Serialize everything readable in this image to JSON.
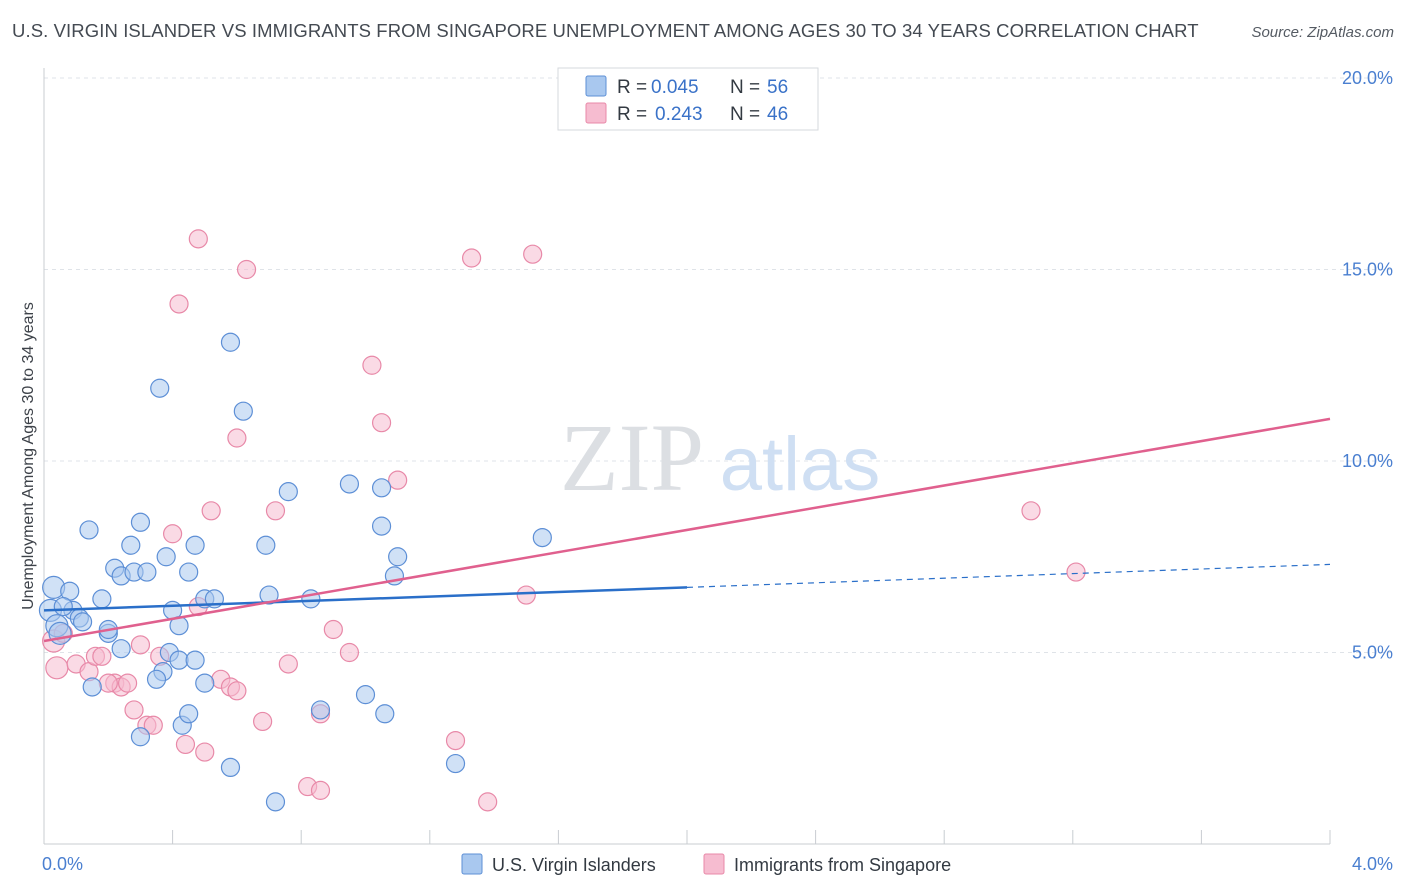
{
  "header": {
    "title": "U.S. VIRGIN ISLANDER VS IMMIGRANTS FROM SINGAPORE UNEMPLOYMENT AMONG AGES 30 TO 34 YEARS CORRELATION CHART",
    "source": "Source: ZipAtlas.com"
  },
  "watermark": {
    "zip": "ZIP",
    "atlas": "atlas"
  },
  "colors": {
    "blue_fill": "#a9c8ef",
    "blue_stroke": "#5d8fd6",
    "blue_line": "#2a6fc9",
    "pink_fill": "#f6bcd0",
    "pink_stroke": "#e889a8",
    "pink_line": "#e0608e",
    "tick_text": "#4a7fd0",
    "grid": "#dfe3e8"
  },
  "legend": {
    "rows": [
      {
        "r_label": "R =",
        "r_value": "0.045",
        "n_label": "N =",
        "n_value": "56"
      },
      {
        "r_label": "R =",
        "r_value": "0.243",
        "n_label": "N =",
        "n_value": "46"
      }
    ]
  },
  "bottom_legend": [
    "U.S. Virgin Islanders",
    "Immigrants from Singapore"
  ],
  "chart_data": {
    "type": "scatter",
    "title": "U.S. VIRGIN ISLANDER VS IMMIGRANTS FROM SINGAPORE UNEMPLOYMENT AMONG AGES 30 TO 34 YEARS CORRELATION CHART",
    "xlabel": "",
    "ylabel": "Unemployment Among Ages 30 to 34 years",
    "xlim": [
      0,
      4.0
    ],
    "ylim": [
      0,
      20.0
    ],
    "x_tick_labels": [
      "0.0%",
      "4.0%"
    ],
    "y_ticks": [
      5,
      10,
      15,
      20
    ],
    "y_tick_labels": [
      "5.0%",
      "10.0%",
      "15.0%",
      "20.0%"
    ],
    "grid": true,
    "legend_position": "top-center",
    "series": [
      {
        "name": "U.S. Virgin Islanders",
        "r": 0.045,
        "n": 56,
        "trend": {
          "x0": 0.0,
          "y0": 6.1,
          "x1": 2.0,
          "y1": 6.7,
          "dashed_to_x": 4.0,
          "dashed_to_y": 7.3
        },
        "points": [
          [
            0.03,
            6.7
          ],
          [
            0.02,
            6.1
          ],
          [
            0.04,
            5.7
          ],
          [
            0.08,
            6.6
          ],
          [
            0.09,
            6.1
          ],
          [
            0.11,
            5.9
          ],
          [
            0.05,
            5.5
          ],
          [
            0.14,
            8.2
          ],
          [
            0.18,
            6.4
          ],
          [
            0.2,
            5.5
          ],
          [
            0.22,
            7.2
          ],
          [
            0.24,
            7.0
          ],
          [
            0.27,
            7.8
          ],
          [
            0.28,
            7.1
          ],
          [
            0.3,
            8.4
          ],
          [
            0.32,
            7.1
          ],
          [
            0.38,
            7.5
          ],
          [
            0.36,
            11.9
          ],
          [
            0.4,
            6.1
          ],
          [
            0.42,
            5.7
          ],
          [
            0.45,
            7.1
          ],
          [
            0.47,
            7.8
          ],
          [
            0.5,
            6.4
          ],
          [
            0.53,
            6.4
          ],
          [
            0.58,
            13.1
          ],
          [
            0.62,
            11.3
          ],
          [
            0.69,
            7.8
          ],
          [
            0.7,
            6.5
          ],
          [
            0.76,
            9.2
          ],
          [
            0.83,
            6.4
          ],
          [
            0.95,
            9.4
          ],
          [
            1.05,
            9.3
          ],
          [
            1.05,
            8.3
          ],
          [
            1.1,
            7.5
          ],
          [
            1.09,
            7.0
          ],
          [
            1.55,
            8.0
          ],
          [
            0.24,
            5.1
          ],
          [
            0.37,
            4.5
          ],
          [
            0.39,
            5.0
          ],
          [
            0.42,
            4.8
          ],
          [
            0.47,
            4.8
          ],
          [
            0.5,
            4.2
          ],
          [
            0.15,
            4.1
          ],
          [
            0.2,
            5.6
          ],
          [
            0.35,
            4.3
          ],
          [
            0.3,
            2.8
          ],
          [
            0.43,
            3.1
          ],
          [
            0.45,
            3.4
          ],
          [
            0.58,
            2.0
          ],
          [
            0.72,
            1.1
          ],
          [
            0.86,
            3.5
          ],
          [
            1.0,
            3.9
          ],
          [
            1.06,
            3.4
          ],
          [
            1.28,
            2.1
          ],
          [
            0.06,
            6.2
          ],
          [
            0.12,
            5.8
          ]
        ]
      },
      {
        "name": "Immigrants from Singapore",
        "r": 0.243,
        "n": 46,
        "trend": {
          "x0": 0.0,
          "y0": 5.3,
          "x1": 4.0,
          "y1": 11.1
        },
        "points": [
          [
            0.03,
            5.3
          ],
          [
            0.06,
            5.5
          ],
          [
            0.04,
            4.6
          ],
          [
            0.1,
            4.7
          ],
          [
            0.14,
            4.5
          ],
          [
            0.16,
            4.9
          ],
          [
            0.18,
            4.9
          ],
          [
            0.22,
            4.2
          ],
          [
            0.24,
            4.1
          ],
          [
            0.26,
            4.2
          ],
          [
            0.28,
            3.5
          ],
          [
            0.3,
            5.2
          ],
          [
            0.32,
            3.1
          ],
          [
            0.34,
            3.1
          ],
          [
            0.36,
            4.9
          ],
          [
            0.4,
            8.1
          ],
          [
            0.42,
            14.1
          ],
          [
            0.48,
            15.8
          ],
          [
            0.52,
            8.7
          ],
          [
            0.55,
            4.3
          ],
          [
            0.58,
            4.1
          ],
          [
            0.6,
            4.0
          ],
          [
            0.6,
            10.6
          ],
          [
            0.63,
            15.0
          ],
          [
            0.68,
            3.2
          ],
          [
            0.72,
            8.7
          ],
          [
            0.76,
            4.7
          ],
          [
            0.82,
            1.5
          ],
          [
            0.86,
            1.4
          ],
          [
            0.9,
            5.6
          ],
          [
            0.95,
            5.0
          ],
          [
            1.02,
            12.5
          ],
          [
            1.05,
            11.0
          ],
          [
            1.1,
            9.5
          ],
          [
            1.28,
            2.7
          ],
          [
            1.33,
            15.3
          ],
          [
            1.38,
            1.1
          ],
          [
            1.5,
            6.5
          ],
          [
            1.52,
            15.4
          ],
          [
            3.07,
            8.7
          ],
          [
            3.21,
            7.1
          ],
          [
            0.44,
            2.6
          ],
          [
            0.48,
            6.2
          ],
          [
            0.5,
            2.4
          ],
          [
            0.86,
            3.4
          ],
          [
            0.2,
            4.2
          ]
        ]
      }
    ]
  }
}
